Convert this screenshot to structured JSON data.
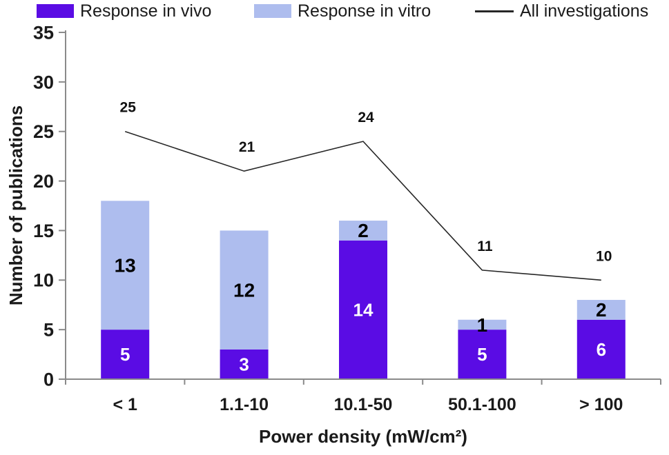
{
  "chart_data": {
    "type": "bar",
    "subtype": "stacked-bars-with-line-overlay",
    "categories": [
      "< 1",
      "1.1-10",
      "10.1-50",
      "50.1-100",
      "> 100"
    ],
    "series": [
      {
        "name": "Response in vivo",
        "values": [
          5,
          3,
          14,
          5,
          6
        ],
        "color": "#5a0ce4",
        "label_color": "#ffffff"
      },
      {
        "name": "Response in vitro",
        "values": [
          13,
          12,
          2,
          1,
          2
        ],
        "color": "#aebdee",
        "label_color": "#000000"
      }
    ],
    "line_series": {
      "name": "All investigations",
      "values": [
        25,
        21,
        24,
        11,
        10
      ],
      "color": "#262626"
    },
    "stack_totals": [
      18,
      15,
      16,
      6,
      8
    ],
    "title": "",
    "xlabel": "Power density (mW/cm²)",
    "ylabel": "Number of publications",
    "ylim": [
      0,
      35
    ],
    "yticks": [
      0,
      5,
      10,
      15,
      20,
      25,
      30,
      35
    ],
    "grid": false,
    "legend_position": "top",
    "colors": {
      "axis": "#8a8a8a",
      "text": "#1a1a1a",
      "background": "#ffffff"
    }
  }
}
